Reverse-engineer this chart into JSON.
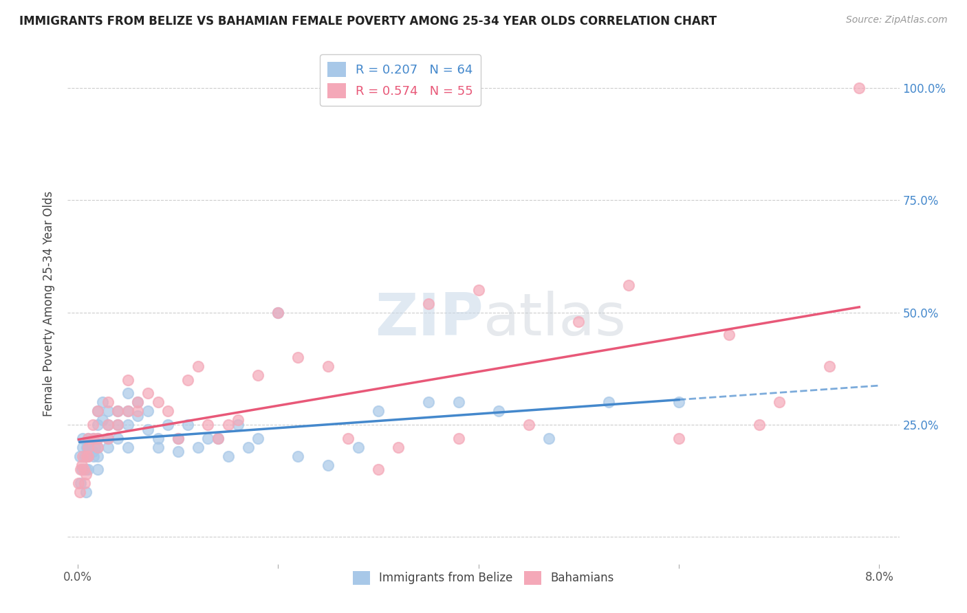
{
  "title": "IMMIGRANTS FROM BELIZE VS BAHAMIAN FEMALE POVERTY AMONG 25-34 YEAR OLDS CORRELATION CHART",
  "source": "Source: ZipAtlas.com",
  "ylabel": "Female Poverty Among 25-34 Year Olds",
  "xlim": [
    -0.001,
    0.082
  ],
  "ylim": [
    -0.06,
    1.1
  ],
  "xticks": [
    0.0,
    0.02,
    0.04,
    0.06,
    0.08
  ],
  "xtick_labels": [
    "0.0%",
    "",
    "",
    "",
    "8.0%"
  ],
  "yticks": [
    0.0,
    0.25,
    0.5,
    0.75,
    1.0
  ],
  "ytick_labels_right": [
    "",
    "25.0%",
    "50.0%",
    "75.0%",
    "100.0%"
  ],
  "legend_labels": [
    "Immigrants from Belize",
    "Bahamians"
  ],
  "r_belize": 0.207,
  "n_belize": 64,
  "r_bahamian": 0.574,
  "n_bahamian": 55,
  "belize_color": "#a8c8e8",
  "bahamian_color": "#f4a8b8",
  "belize_line_color": "#4488cc",
  "bahamian_line_color": "#e85878",
  "tick_color": "#4488cc",
  "watermark_color": "#d0dce8",
  "belize_x": [
    0.0002,
    0.0003,
    0.0004,
    0.0005,
    0.0005,
    0.0007,
    0.0008,
    0.0008,
    0.0009,
    0.001,
    0.001,
    0.001,
    0.001,
    0.0015,
    0.0015,
    0.0016,
    0.0017,
    0.002,
    0.002,
    0.002,
    0.002,
    0.002,
    0.002,
    0.0025,
    0.0025,
    0.003,
    0.003,
    0.003,
    0.003,
    0.004,
    0.004,
    0.004,
    0.005,
    0.005,
    0.005,
    0.005,
    0.006,
    0.006,
    0.007,
    0.007,
    0.008,
    0.008,
    0.009,
    0.01,
    0.01,
    0.011,
    0.012,
    0.013,
    0.014,
    0.015,
    0.016,
    0.017,
    0.018,
    0.02,
    0.022,
    0.025,
    0.028,
    0.03,
    0.035,
    0.038,
    0.042,
    0.047,
    0.053,
    0.06
  ],
  "belize_y": [
    0.18,
    0.12,
    0.15,
    0.2,
    0.22,
    0.18,
    0.1,
    0.15,
    0.2,
    0.18,
    0.2,
    0.22,
    0.15,
    0.22,
    0.19,
    0.18,
    0.2,
    0.28,
    0.22,
    0.25,
    0.2,
    0.18,
    0.15,
    0.3,
    0.26,
    0.28,
    0.25,
    0.2,
    0.22,
    0.28,
    0.25,
    0.22,
    0.32,
    0.28,
    0.25,
    0.2,
    0.3,
    0.27,
    0.28,
    0.24,
    0.22,
    0.2,
    0.25,
    0.22,
    0.19,
    0.25,
    0.2,
    0.22,
    0.22,
    0.18,
    0.25,
    0.2,
    0.22,
    0.5,
    0.18,
    0.16,
    0.2,
    0.28,
    0.3,
    0.3,
    0.28,
    0.22,
    0.3,
    0.3
  ],
  "bahamian_x": [
    0.0001,
    0.0002,
    0.0003,
    0.0004,
    0.0005,
    0.0006,
    0.0007,
    0.0008,
    0.0009,
    0.001,
    0.001,
    0.001,
    0.0015,
    0.0016,
    0.002,
    0.002,
    0.002,
    0.003,
    0.003,
    0.003,
    0.004,
    0.004,
    0.005,
    0.005,
    0.006,
    0.006,
    0.007,
    0.008,
    0.009,
    0.01,
    0.011,
    0.012,
    0.013,
    0.014,
    0.015,
    0.016,
    0.018,
    0.02,
    0.022,
    0.025,
    0.027,
    0.03,
    0.032,
    0.035,
    0.038,
    0.04,
    0.045,
    0.05,
    0.055,
    0.06,
    0.065,
    0.068,
    0.07,
    0.075,
    0.078
  ],
  "bahamian_y": [
    0.12,
    0.1,
    0.15,
    0.16,
    0.18,
    0.15,
    0.12,
    0.14,
    0.18,
    0.2,
    0.22,
    0.18,
    0.25,
    0.22,
    0.28,
    0.22,
    0.2,
    0.3,
    0.25,
    0.22,
    0.28,
    0.25,
    0.35,
    0.28,
    0.3,
    0.28,
    0.32,
    0.3,
    0.28,
    0.22,
    0.35,
    0.38,
    0.25,
    0.22,
    0.25,
    0.26,
    0.36,
    0.5,
    0.4,
    0.38,
    0.22,
    0.15,
    0.2,
    0.52,
    0.22,
    0.55,
    0.25,
    0.48,
    0.56,
    0.22,
    0.45,
    0.25,
    0.3,
    0.38,
    1.0
  ]
}
